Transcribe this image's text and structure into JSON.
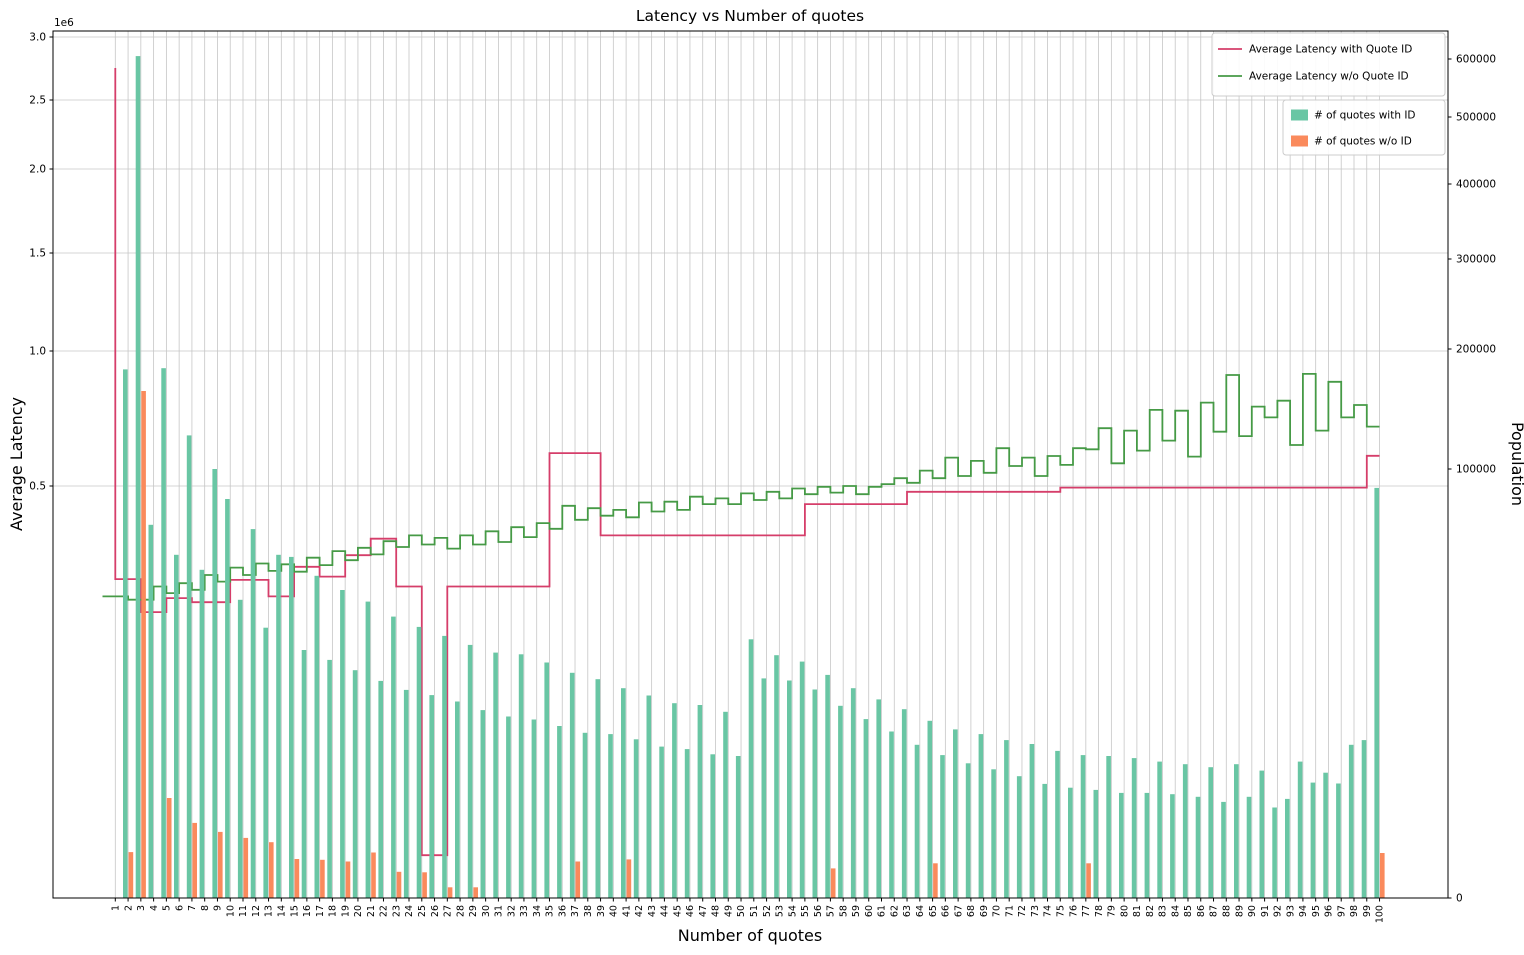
{
  "title": "Latency vs Number of quotes",
  "axes": {
    "left": {
      "label": "Average Latency",
      "offset_label": "1e6",
      "tick_labels": [
        "0.5",
        "1.0",
        "1.5",
        "2.0",
        "2.5",
        "3.0"
      ],
      "tick_values": [
        500000,
        1000000,
        1500000,
        2000000,
        2500000,
        3000000
      ]
    },
    "right": {
      "label": "Population",
      "tick_labels": [
        "0",
        "100000",
        "200000",
        "300000",
        "400000",
        "500000",
        "600000"
      ],
      "tick_values": [
        0,
        100000,
        200000,
        300000,
        400000,
        500000,
        600000
      ]
    },
    "bottom": {
      "label": "Number of quotes"
    }
  },
  "legends": {
    "lines": [
      {
        "label": "Average Latency with Quote ID",
        "color": "#d53e6a"
      },
      {
        "label": "Average Latency w/o Quote ID",
        "color": "#469a46"
      }
    ],
    "bars": [
      {
        "label": "# of quotes with ID",
        "color": "#69c6a4"
      },
      {
        "label": "# of quotes w/o ID",
        "color": "#fa8a5c"
      }
    ]
  },
  "chart_data": {
    "type": "bar",
    "note": "Two step-lines (left latency axis) + two bar series (right population axis); both y axes are nonlinear, strongly compressed toward 0",
    "grid": true,
    "categories": [
      1,
      2,
      3,
      4,
      5,
      6,
      7,
      8,
      9,
      10,
      11,
      12,
      13,
      14,
      15,
      16,
      17,
      18,
      19,
      20,
      21,
      22,
      23,
      24,
      25,
      26,
      27,
      28,
      29,
      30,
      31,
      32,
      33,
      34,
      35,
      36,
      37,
      38,
      39,
      40,
      41,
      42,
      43,
      44,
      45,
      46,
      47,
      48,
      49,
      50,
      51,
      52,
      53,
      54,
      55,
      56,
      57,
      58,
      59,
      60,
      61,
      62,
      63,
      64,
      65,
      66,
      67,
      68,
      69,
      70,
      71,
      72,
      73,
      74,
      75,
      76,
      77,
      78,
      79,
      80,
      81,
      82,
      83,
      84,
      85,
      86,
      87,
      88,
      89,
      90,
      91,
      92,
      93,
      94,
      95,
      96,
      97,
      98,
      99,
      100
    ],
    "xlabel": "Number of quotes",
    "ylabel_left": "Average Latency",
    "ylabel_right": "Population",
    "ylim_left": [
      0,
      3050000
    ],
    "ylim_right": [
      0,
      620000
    ],
    "series": [
      {
        "name": "Average Latency with Quote ID",
        "type": "step-line",
        "axis": "left",
        "color": "#d53e6a",
        "values": [
          2754000,
          387000,
          387000,
          347000,
          347000,
          364000,
          364000,
          359000,
          359000,
          359000,
          386000,
          386000,
          386000,
          366000,
          366000,
          402000,
          402000,
          390000,
          390000,
          416000,
          416000,
          436000,
          436000,
          378000,
          378000,
          52000,
          52000,
          378000,
          378000,
          378000,
          378000,
          378000,
          378000,
          378000,
          378000,
          622000,
          622000,
          622000,
          622000,
          440000,
          440000,
          440000,
          440000,
          440000,
          440000,
          440000,
          440000,
          440000,
          440000,
          440000,
          440000,
          440000,
          440000,
          440000,
          440000,
          478000,
          478000,
          478000,
          478000,
          478000,
          478000,
          478000,
          478000,
          493000,
          493000,
          493000,
          493000,
          493000,
          493000,
          493000,
          493000,
          493000,
          493000,
          493000,
          493000,
          498000,
          498000,
          498000,
          498000,
          498000,
          498000,
          498000,
          498000,
          498000,
          498000,
          498000,
          498000,
          498000,
          498000,
          498000,
          498000,
          498000,
          498000,
          498000,
          498000,
          498000,
          498000,
          498000,
          498000,
          612000
        ]
      },
      {
        "name": "Average Latency w/o Quote ID",
        "type": "step-line",
        "axis": "left",
        "color": "#469a46",
        "values": [
          366000,
          366000,
          362000,
          362000,
          378000,
          370000,
          382000,
          374000,
          392000,
          384000,
          401000,
          392000,
          406000,
          397000,
          405000,
          396000,
          413000,
          404000,
          421000,
          410000,
          425000,
          417000,
          433000,
          426000,
          440000,
          429000,
          437000,
          424000,
          440000,
          429000,
          445000,
          432000,
          450000,
          438000,
          455000,
          448000,
          476000,
          459000,
          473000,
          464000,
          471000,
          462000,
          480000,
          469000,
          481000,
          471000,
          487000,
          478000,
          485000,
          478000,
          491000,
          483000,
          493000,
          485000,
          497000,
          490000,
          499000,
          492000,
          500000,
          490000,
          499000,
          507000,
          529000,
          512000,
          557000,
          529000,
          605000,
          537000,
          593000,
          549000,
          640000,
          574000,
          605000,
          537000,
          611000,
          578000,
          640000,
          636000,
          714000,
          584000,
          705000,
          631000,
          782000,
          668000,
          779000,
          609000,
          809000,
          701000,
          911000,
          685000,
          794000,
          754000,
          816000,
          652000,
          915000,
          705000,
          886000,
          754000,
          800000,
          720000
        ]
      },
      {
        "name": "# of quotes with ID",
        "type": "bar",
        "axis": "right",
        "color": "#69c6a4",
        "values": [
          0,
          183000,
          605000,
          87000,
          184000,
          80000,
          128000,
          76500,
          100000,
          93000,
          69500,
          86000,
          63000,
          80000,
          79500,
          57800,
          75100,
          55500,
          71800,
          53100,
          69100,
          50600,
          65600,
          48500,
          63200,
          47300,
          61100,
          45800,
          59000,
          43800,
          57200,
          42300,
          56800,
          41600,
          54900,
          40100,
          52500,
          38500,
          51000,
          38200,
          48900,
          37000,
          47200,
          35300,
          45400,
          34700,
          45000,
          33500,
          43400,
          33100,
          60300,
          51200,
          56600,
          50700,
          55100,
          48600,
          52000,
          44800,
          48900,
          41700,
          46300,
          38800,
          44000,
          35700,
          41300,
          33300,
          39300,
          31400,
          38200,
          30000,
          36800,
          28400,
          35900,
          26600,
          34300,
          25700,
          33300,
          25200,
          33100,
          24500,
          32600,
          24500,
          31800,
          24200,
          31200,
          23600,
          30500,
          22400,
          31200,
          23600,
          29700,
          21100,
          23100,
          31800,
          26900,
          29200,
          26700,
          35700,
          36800,
          95600
        ]
      },
      {
        "name": "# of quotes w/o ID",
        "type": "bar",
        "axis": "right",
        "color": "#fa8a5c",
        "values": [
          0,
          10700,
          165000,
          0,
          23300,
          0,
          17500,
          0,
          15400,
          0,
          14000,
          0,
          13000,
          0,
          9100,
          0,
          8900,
          0,
          8500,
          0,
          10600,
          0,
          6100,
          0,
          6000,
          0,
          2500,
          0,
          2500,
          0,
          0,
          0,
          0,
          0,
          0,
          0,
          8500,
          0,
          0,
          0,
          9000,
          0,
          0,
          0,
          0,
          0,
          0,
          0,
          0,
          0,
          0,
          0,
          0,
          0,
          0,
          0,
          6900,
          0,
          0,
          0,
          0,
          0,
          0,
          0,
          8100,
          0,
          0,
          0,
          0,
          0,
          0,
          0,
          0,
          0,
          0,
          0,
          8100,
          0,
          0,
          0,
          0,
          0,
          0,
          0,
          0,
          0,
          0,
          0,
          0,
          0,
          0,
          0,
          0,
          0,
          0,
          0,
          0,
          0,
          0,
          10500
        ]
      }
    ]
  },
  "colors": {
    "grid": "#c6c6c6",
    "spine": "#000000",
    "background": "#ffffff"
  }
}
